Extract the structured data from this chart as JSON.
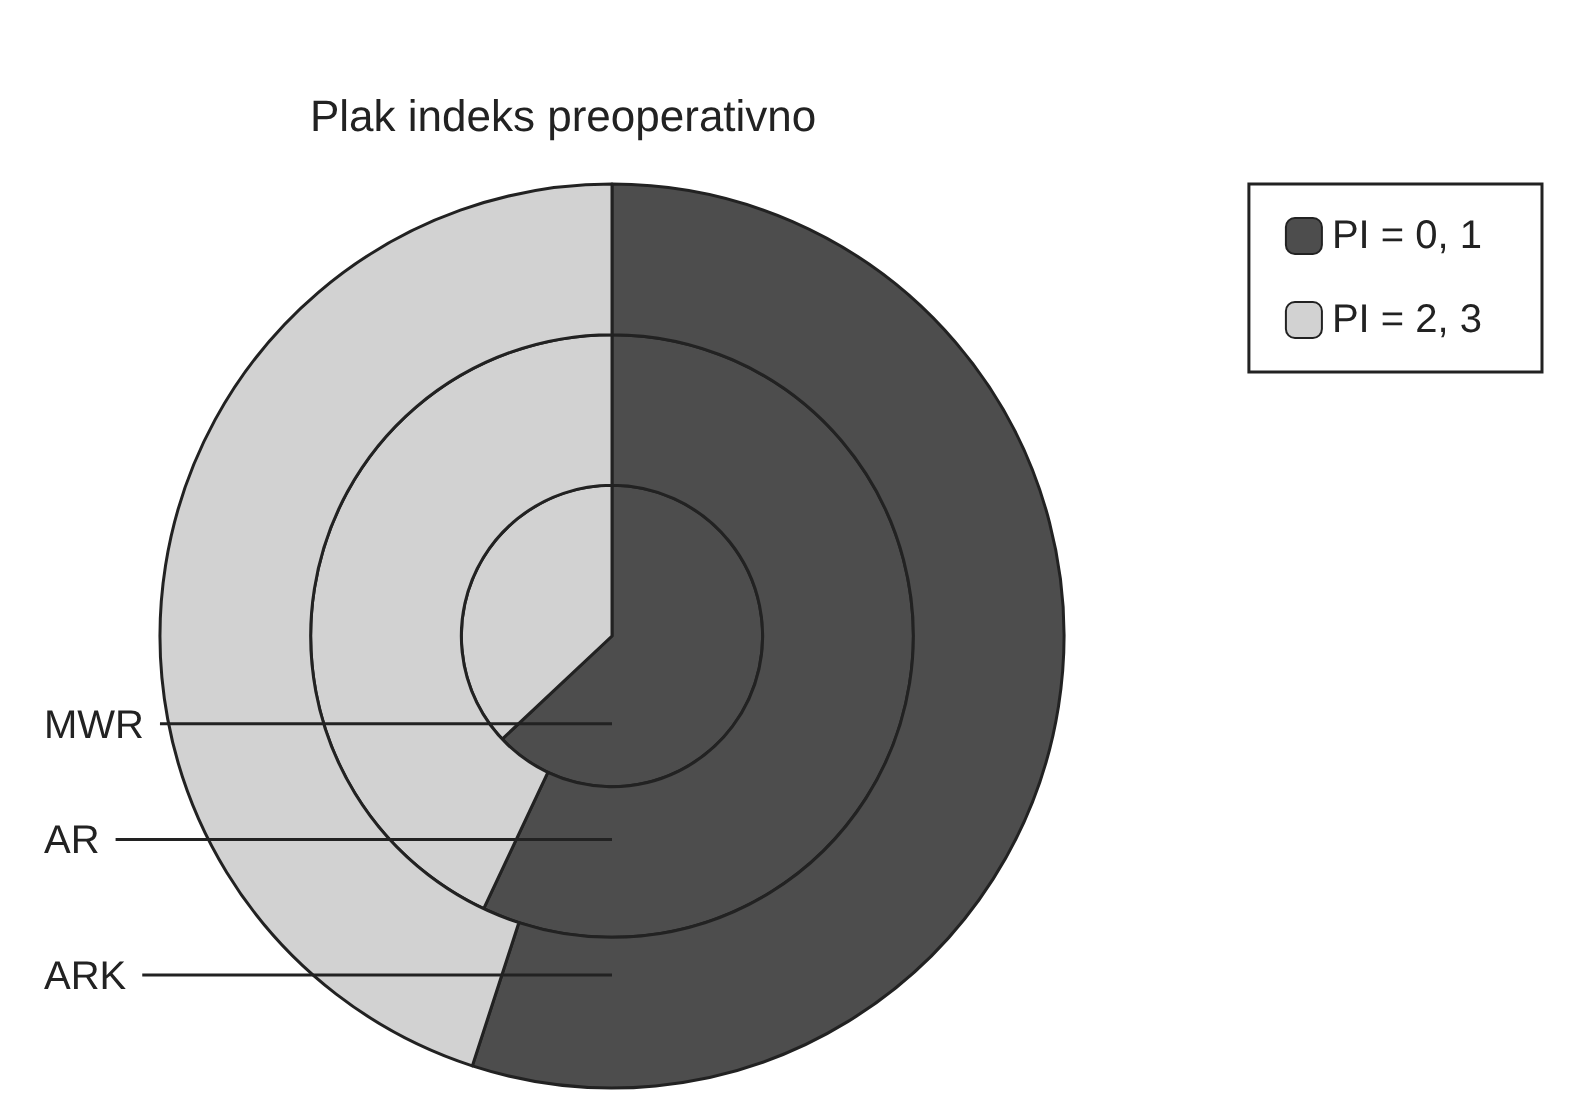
{
  "chart_data": {
    "type": "donut",
    "title": "Plak indeks preoperativno",
    "categories": [
      "PI = 0, 1",
      "PI = 2, 3"
    ],
    "colors": [
      "#4d4d4d",
      "#d2d2d2"
    ],
    "legend": "top right",
    "series": [
      {
        "name": "MWR",
        "values": [
          63,
          37
        ]
      },
      {
        "name": "AR",
        "values": [
          57,
          43
        ]
      },
      {
        "name": "ARK",
        "values": [
          55,
          45
        ]
      }
    ]
  }
}
